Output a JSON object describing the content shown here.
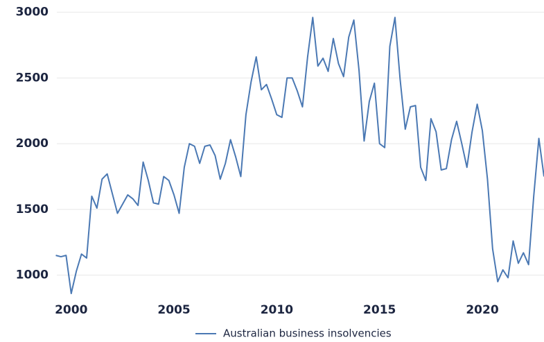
{
  "chart_data": {
    "type": "line",
    "x": [
      1999.25,
      1999.5,
      1999.75,
      2000.0,
      2000.25,
      2000.5,
      2000.75,
      2001.0,
      2001.25,
      2001.5,
      2001.75,
      2002.0,
      2002.25,
      2002.5,
      2002.75,
      2003.0,
      2003.25,
      2003.5,
      2003.75,
      2004.0,
      2004.25,
      2004.5,
      2004.75,
      2005.0,
      2005.25,
      2005.5,
      2005.75,
      2006.0,
      2006.25,
      2006.5,
      2006.75,
      2007.0,
      2007.25,
      2007.5,
      2007.75,
      2008.0,
      2008.25,
      2008.5,
      2008.75,
      2009.0,
      2009.25,
      2009.5,
      2009.75,
      2010.0,
      2010.25,
      2010.5,
      2010.75,
      2011.0,
      2011.25,
      2011.5,
      2011.75,
      2012.0,
      2012.25,
      2012.5,
      2012.75,
      2013.0,
      2013.25,
      2013.5,
      2013.75,
      2014.0,
      2014.25,
      2014.5,
      2014.75,
      2015.0,
      2015.25,
      2015.5,
      2015.75,
      2016.0,
      2016.25,
      2016.5,
      2016.75,
      2017.0,
      2017.25,
      2017.5,
      2017.75,
      2018.0,
      2018.25,
      2018.5,
      2018.75,
      2019.0,
      2019.25,
      2019.5,
      2019.75,
      2020.0,
      2020.25,
      2020.5,
      2020.75,
      2021.0,
      2021.25,
      2021.5,
      2021.75,
      2022.0,
      2022.25,
      2022.5,
      2022.75,
      2023.0
    ],
    "series": [
      {
        "name": "Australian business insolvencies",
        "color": "#4a78b3",
        "values": [
          1150,
          1140,
          1150,
          860,
          1030,
          1160,
          1130,
          1600,
          1510,
          1730,
          1770,
          1620,
          1470,
          1540,
          1610,
          1580,
          1530,
          1860,
          1720,
          1550,
          1540,
          1750,
          1720,
          1610,
          1470,
          1820,
          2000,
          1980,
          1850,
          1980,
          1990,
          1910,
          1730,
          1850,
          2030,
          1900,
          1750,
          2220,
          2470,
          2660,
          2410,
          2450,
          2340,
          2220,
          2200,
          2500,
          2500,
          2400,
          2280,
          2660,
          2960,
          2590,
          2650,
          2550,
          2800,
          2610,
          2510,
          2810,
          2940,
          2560,
          2020,
          2320,
          2460,
          2000,
          1970,
          2740,
          2960,
          2490,
          2110,
          2280,
          2290,
          1820,
          1720,
          2190,
          2090,
          1800,
          1810,
          2030,
          2170,
          2000,
          1820,
          2090,
          2300,
          2100,
          1730,
          1200,
          950,
          1040,
          980,
          1260,
          1090,
          1170,
          1080,
          1600,
          2040,
          1750
        ]
      }
    ],
    "xlim": [
      1999.3,
      2023.0
    ],
    "xticks": [
      2000,
      2005,
      2010,
      2015,
      2020
    ],
    "ylim": [
      850,
      3040
    ],
    "yticks": [
      1000,
      1500,
      2000,
      2500,
      3000
    ],
    "grid": true,
    "legend": "bottom"
  }
}
